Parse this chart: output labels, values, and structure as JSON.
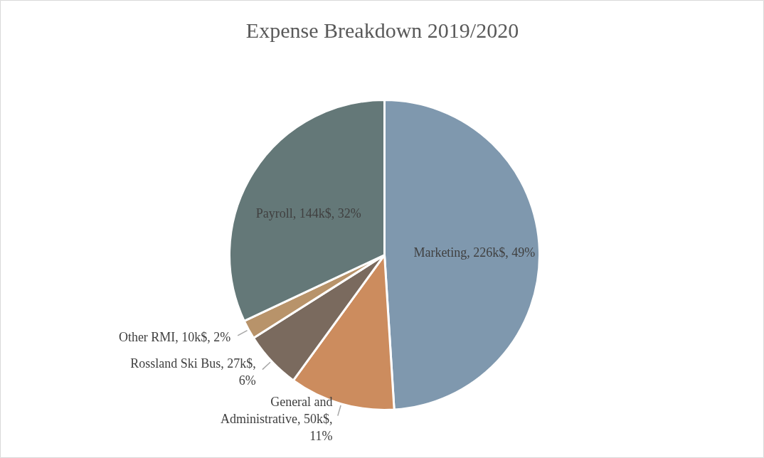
{
  "chart_data": {
    "type": "pie",
    "title": "Expense Breakdown 2019/2020",
    "categories": [
      "Marketing",
      "General and Administrative",
      "Rossland Ski Bus",
      "Other RMI",
      "Payroll"
    ],
    "values": [
      49,
      11,
      6,
      2,
      32
    ],
    "value_labels": [
      "226k$, 49%",
      "50k$, 11%",
      "27k$, 6%",
      "10k$, 2%",
      "144k$, 32%"
    ],
    "colors": [
      "#7f98ae",
      "#cc8c5e",
      "#7a6a5e",
      "#b8936a",
      "#647878"
    ]
  }
}
